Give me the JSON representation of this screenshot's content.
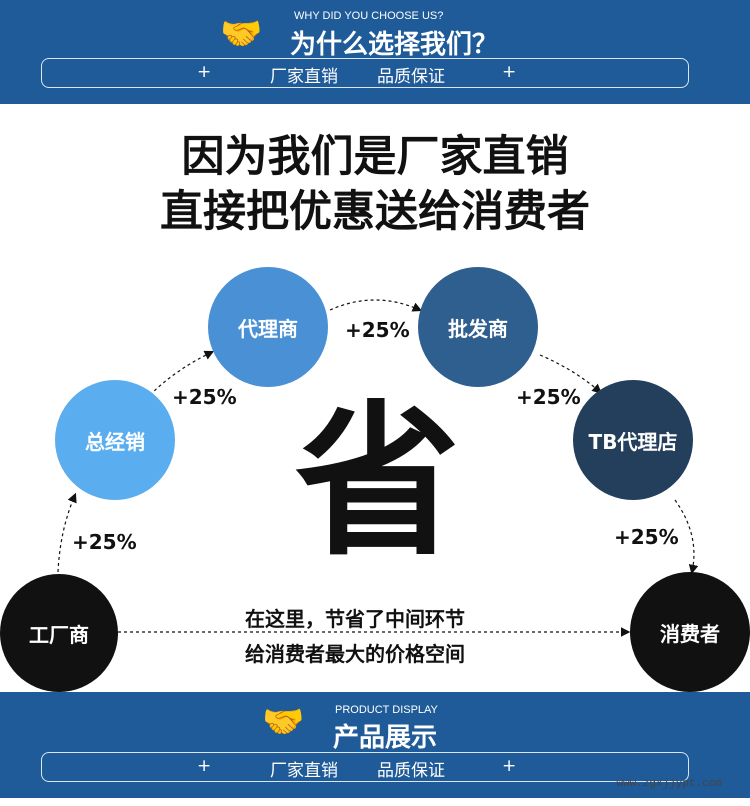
{
  "top_banner": {
    "subtitle": "WHY DID YOU CHOOSE US?",
    "title": "为什么选择我们？",
    "icon": "handshake-icon",
    "bar_left": "厂家直销",
    "bar_right": "品质保证",
    "plus": "+"
  },
  "headline": {
    "line1": "因为我们是厂家直销",
    "line2": "直接把优惠送给消费者"
  },
  "chain": [
    {
      "label": "工厂商",
      "color": "#111111"
    },
    {
      "label": "总经销",
      "color": "#5aaef0"
    },
    {
      "label": "代理商",
      "color": "#4a90d4"
    },
    {
      "label": "批发商",
      "color": "#2f5f8f"
    },
    {
      "label": "TB代理店",
      "color": "#233f5c"
    },
    {
      "label": "消费者",
      "color": "#111111"
    }
  ],
  "markups": [
    "+25%",
    "+25%",
    "+25%",
    "+25%",
    "+25%"
  ],
  "center_char": "省",
  "note": {
    "line1": "在这里，节省了中间环节",
    "line2": "给消费者最大的价格空间"
  },
  "bottom_banner": {
    "subtitle": "PRODUCT DISPLAY",
    "title": "产品展示",
    "icon": "handshake-icon",
    "bar_left": "厂家直销",
    "bar_right": "品质保证",
    "plus": "+"
  },
  "watermark": "www.zgxjjypt.com",
  "colors": {
    "banner": "#1f5b98"
  }
}
